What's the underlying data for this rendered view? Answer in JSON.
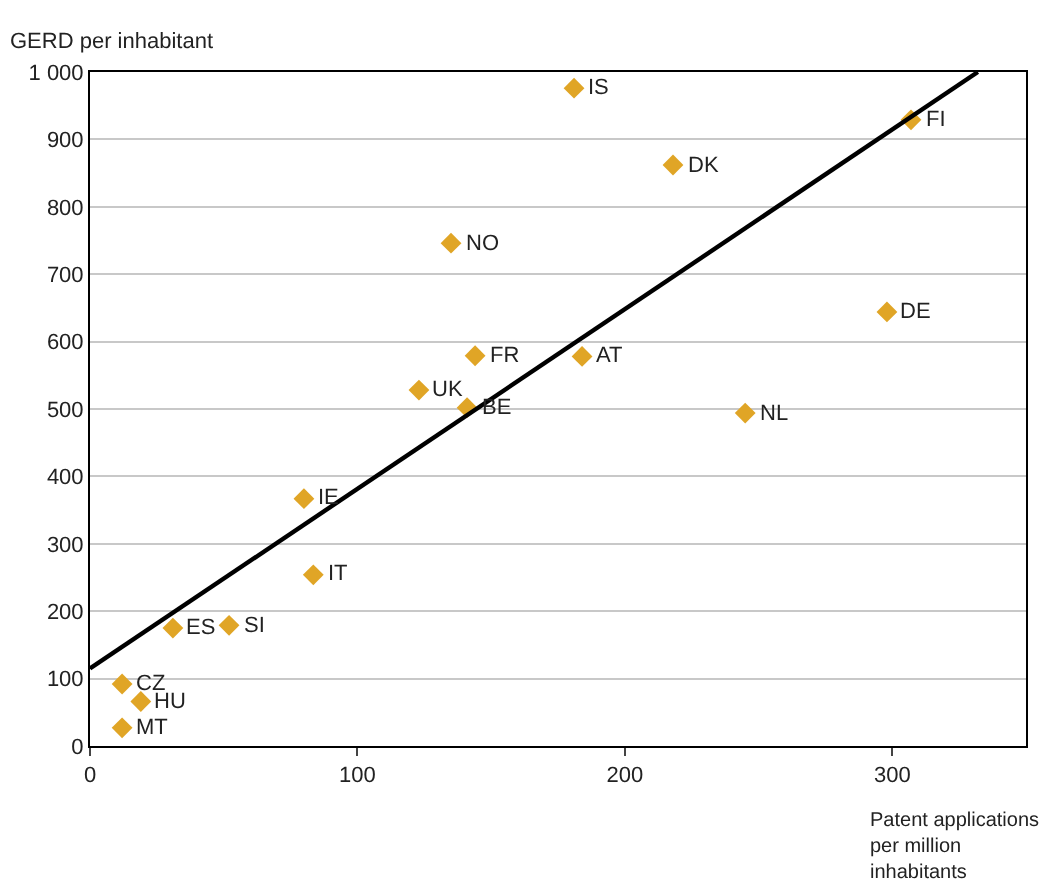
{
  "chart_data": {
    "type": "scatter",
    "ylabel": "GERD per inhabitant",
    "xlabel": "Patent applications per million inhabitants",
    "series": [
      {
        "color": "#e0a526",
        "marker": "diamond",
        "x": [
          181,
          218,
          307,
          298,
          184,
          245,
          135,
          144,
          123,
          141,
          80,
          83.5,
          31,
          52,
          12,
          19,
          12
        ],
        "values": [
          976,
          862,
          929,
          644,
          578,
          494,
          746,
          579,
          528,
          502,
          367,
          254,
          175,
          179,
          92,
          66,
          27
        ]
      },
      {
        "type": "line",
        "color": "#000000",
        "line_style": "solid",
        "x": [
          0,
          332
        ],
        "values": [
          115,
          1000
        ]
      }
    ],
    "annotations": [
      {
        "text": "IS",
        "x": 181,
        "y": 976
      },
      {
        "text": "DK",
        "x": 218,
        "y": 862
      },
      {
        "text": "FI",
        "x": 307,
        "y": 929
      },
      {
        "text": "DE",
        "x": 298,
        "y": 644
      },
      {
        "text": "AT",
        "x": 184,
        "y": 578
      },
      {
        "text": "NL",
        "x": 245,
        "y": 494
      },
      {
        "text": "NO",
        "x": 135,
        "y": 746
      },
      {
        "text": "FR",
        "x": 144,
        "y": 579
      },
      {
        "text": "UK",
        "x": 123,
        "y": 528
      },
      {
        "text": "BE",
        "x": 141,
        "y": 502
      },
      {
        "text": "IE",
        "x": 80,
        "y": 367
      },
      {
        "text": "IT",
        "x": 83.5,
        "y": 254
      },
      {
        "text": "ES",
        "x": 31,
        "y": 175
      },
      {
        "text": "SI",
        "x": 52,
        "y": 179
      },
      {
        "text": "CZ",
        "x": 12,
        "y": 92
      },
      {
        "text": "HU",
        "x": 19,
        "y": 66
      },
      {
        "text": "MT",
        "x": 12,
        "y": 27
      }
    ],
    "xlim": [
      0,
      350
    ],
    "xticks": [
      0,
      100,
      200,
      300
    ],
    "ylim": [
      0,
      1000
    ],
    "yticks": [
      0,
      100,
      200,
      300,
      400,
      500,
      600,
      700,
      800,
      900,
      {
        "value": 1000,
        "label": "1 000"
      }
    ],
    "grid": "y"
  }
}
